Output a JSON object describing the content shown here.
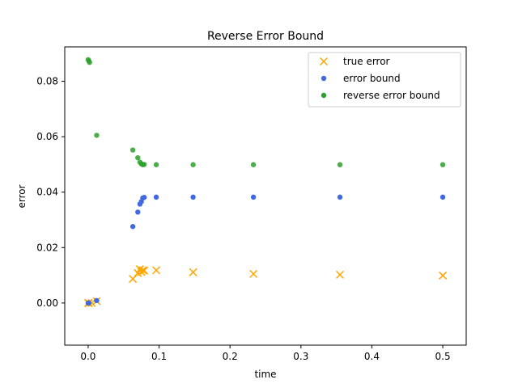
{
  "chart_data": {
    "type": "scatter",
    "title": "Reverse Error Bound",
    "xlabel": "time",
    "ylabel": "error",
    "xlim": [
      -0.033,
      0.533
    ],
    "ylim": [
      -0.0152,
      0.0924
    ],
    "xticks": [
      0.0,
      0.1,
      0.2,
      0.3,
      0.4,
      0.5
    ],
    "xtick_labels": [
      "0.0",
      "0.1",
      "0.2",
      "0.3",
      "0.4",
      "0.5"
    ],
    "yticks": [
      0.0,
      0.02,
      0.04,
      0.06,
      0.08
    ],
    "ytick_labels": [
      "0.00",
      "0.02",
      "0.04",
      "0.06",
      "0.08"
    ],
    "legend_position": "top-right",
    "series": [
      {
        "name": "true error",
        "marker": "x",
        "color": "#FFA500",
        "points": [
          [
            0.0,
            0.0
          ],
          [
            0.001,
            0.0
          ],
          [
            0.005,
            0.0
          ],
          [
            0.012,
            0.0007
          ],
          [
            0.063,
            0.0087
          ],
          [
            0.07,
            0.0108
          ],
          [
            0.073,
            0.0122
          ],
          [
            0.075,
            0.0112
          ],
          [
            0.077,
            0.0118
          ],
          [
            0.079,
            0.0117
          ],
          [
            0.096,
            0.0118
          ],
          [
            0.148,
            0.0111
          ],
          [
            0.233,
            0.0105
          ],
          [
            0.355,
            0.0102
          ],
          [
            0.5,
            0.0099
          ]
        ]
      },
      {
        "name": "error bound",
        "marker": "o",
        "color": "#4169E1",
        "points": [
          [
            0.0,
            0.0
          ],
          [
            0.001,
            0.0
          ],
          [
            0.012,
            0.0009
          ],
          [
            0.063,
            0.0276
          ],
          [
            0.07,
            0.0328
          ],
          [
            0.073,
            0.0357
          ],
          [
            0.075,
            0.0366
          ],
          [
            0.077,
            0.0379
          ],
          [
            0.079,
            0.0381
          ],
          [
            0.096,
            0.0382
          ],
          [
            0.148,
            0.0382
          ],
          [
            0.233,
            0.0382
          ],
          [
            0.355,
            0.0382
          ],
          [
            0.5,
            0.0382
          ]
        ]
      },
      {
        "name": "reverse error bound",
        "marker": "o",
        "color": "#2CA02C",
        "points": [
          [
            0.0,
            0.0878
          ],
          [
            0.001,
            0.0873
          ],
          [
            0.002,
            0.0868
          ],
          [
            0.012,
            0.0605
          ],
          [
            0.063,
            0.0552
          ],
          [
            0.07,
            0.0524
          ],
          [
            0.073,
            0.0508
          ],
          [
            0.075,
            0.0502
          ],
          [
            0.077,
            0.0499
          ],
          [
            0.079,
            0.05
          ],
          [
            0.096,
            0.0499
          ],
          [
            0.148,
            0.0499
          ],
          [
            0.233,
            0.0499
          ],
          [
            0.355,
            0.0499
          ],
          [
            0.5,
            0.0499
          ]
        ]
      }
    ]
  }
}
